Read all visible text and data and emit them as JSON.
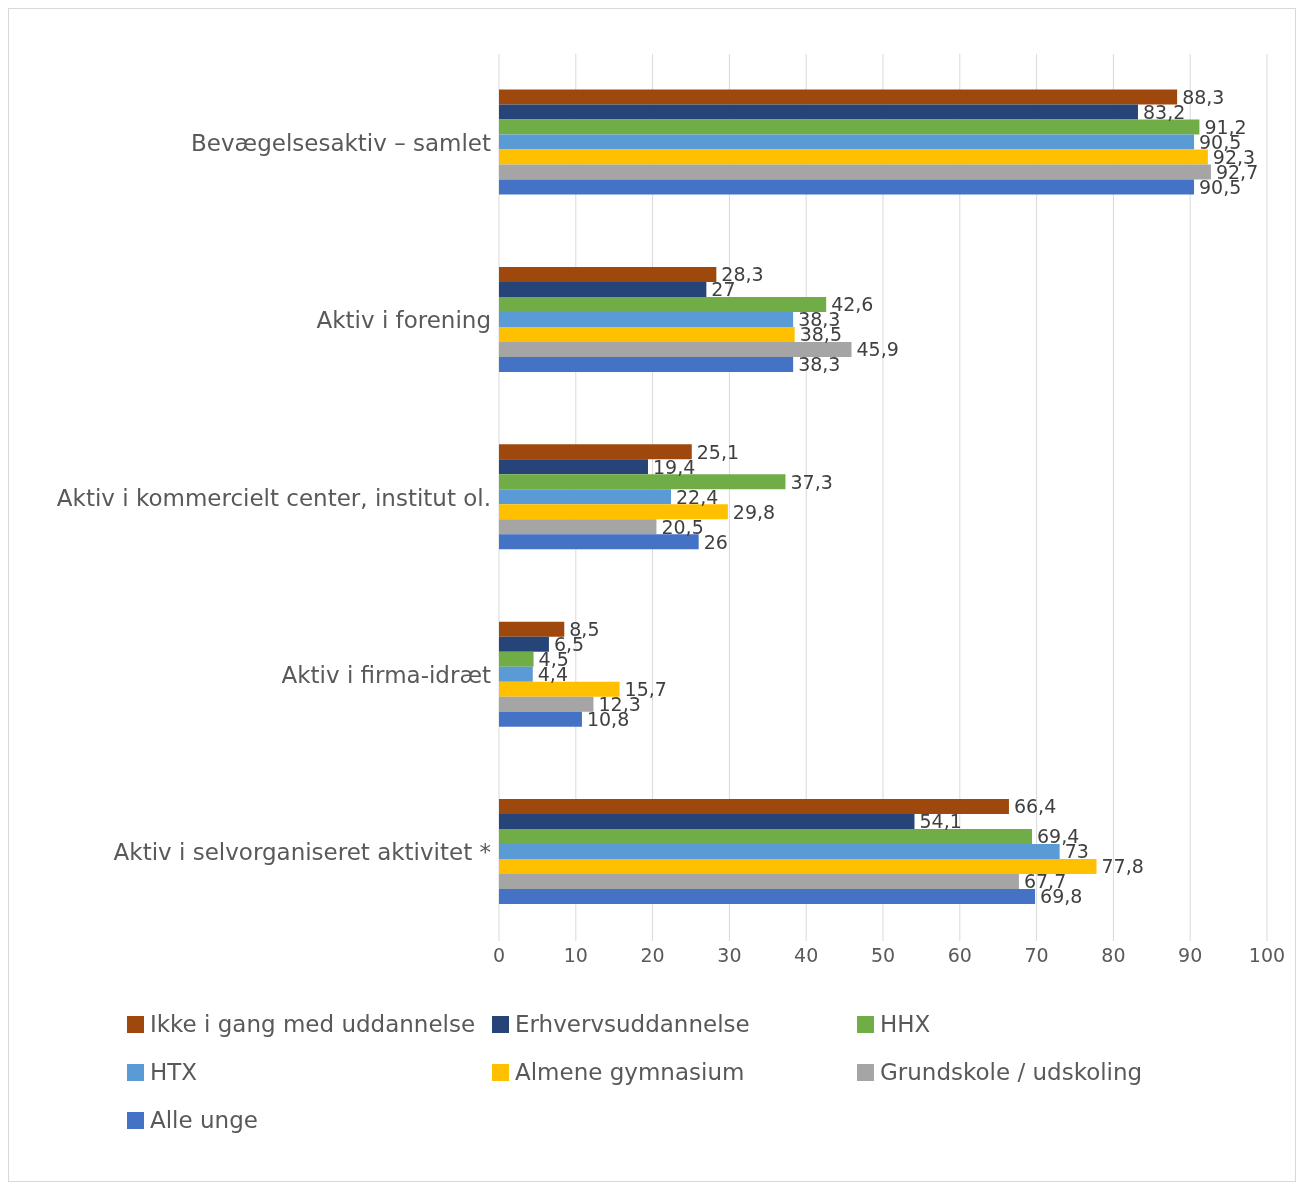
{
  "chart_data": {
    "type": "bar",
    "orientation": "horizontal",
    "categories": [
      "Bevægelsesaktiv – samlet",
      "Aktiv i forening",
      "Aktiv i kommercielt center, institut ol.",
      "Aktiv i firma-idræt",
      "Aktiv i selvorganiseret aktivitet *"
    ],
    "series": [
      {
        "name": "Ikke i gang med uddannelse",
        "color": "#9e480e",
        "values": [
          88.3,
          28.3,
          25.1,
          8.5,
          66.4
        ],
        "value_labels": [
          "88,3",
          "28,3",
          "25,1",
          "8,5",
          "66,4"
        ]
      },
      {
        "name": "Erhvervsuddannelse",
        "color": "#264478",
        "values": [
          83.2,
          27,
          19.4,
          6.5,
          54.1
        ],
        "value_labels": [
          "83,2",
          "27",
          "19,4",
          "6,5",
          "54,1"
        ]
      },
      {
        "name": "HHX",
        "color": "#70ad47",
        "values": [
          91.2,
          42.6,
          37.3,
          4.5,
          69.4
        ],
        "value_labels": [
          "91,2",
          "42,6",
          "37,3",
          "4,5",
          "69,4"
        ]
      },
      {
        "name": "HTX",
        "color": "#5b9bd5",
        "values": [
          90.5,
          38.3,
          22.4,
          4.4,
          73
        ],
        "value_labels": [
          "90,5",
          "38,3",
          "22,4",
          "4,4",
          "73"
        ]
      },
      {
        "name": "Almene gymnasium",
        "color": "#ffc000",
        "values": [
          92.3,
          38.5,
          29.8,
          15.7,
          77.8
        ],
        "value_labels": [
          "92,3",
          "38,5",
          "29,8",
          "15,7",
          "77,8"
        ]
      },
      {
        "name": "Grundskole / udskoling",
        "color": "#a5a5a5",
        "values": [
          92.7,
          45.9,
          20.5,
          12.3,
          67.7
        ],
        "value_labels": [
          "92,7",
          "45,9",
          "20,5",
          "12,3",
          "67,7"
        ]
      },
      {
        "name": "Alle unge",
        "color": "#4472c4",
        "values": [
          90.5,
          38.3,
          26,
          10.8,
          69.8
        ],
        "value_labels": [
          "90,5",
          "38,3",
          "26",
          "10,8",
          "69,8"
        ]
      }
    ],
    "xlim": [
      0,
      100
    ],
    "xticks": [
      0,
      10,
      20,
      30,
      40,
      50,
      60,
      70,
      80,
      90,
      100
    ],
    "grid": "x",
    "legend": "bottom"
  }
}
